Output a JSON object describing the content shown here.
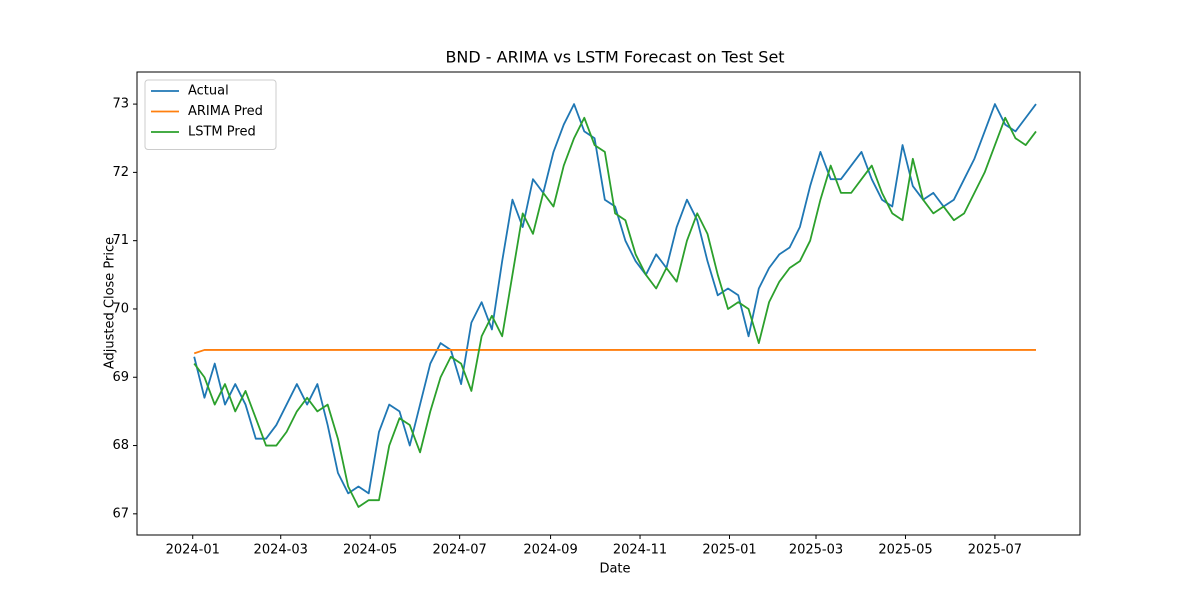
{
  "chart_data": {
    "type": "line",
    "title": "BND - ARIMA vs LSTM Forecast on Test Set",
    "xlabel": "Date",
    "ylabel": "Adjusted Close Price",
    "x": [
      "2024-01-02",
      "2024-01-09",
      "2024-01-16",
      "2024-01-23",
      "2024-01-30",
      "2024-02-06",
      "2024-02-13",
      "2024-02-20",
      "2024-02-27",
      "2024-03-05",
      "2024-03-12",
      "2024-03-19",
      "2024-03-26",
      "2024-04-02",
      "2024-04-09",
      "2024-04-16",
      "2024-04-23",
      "2024-04-30",
      "2024-05-07",
      "2024-05-14",
      "2024-05-21",
      "2024-05-28",
      "2024-06-04",
      "2024-06-11",
      "2024-06-18",
      "2024-06-25",
      "2024-07-02",
      "2024-07-09",
      "2024-07-16",
      "2024-07-23",
      "2024-07-30",
      "2024-08-06",
      "2024-08-13",
      "2024-08-20",
      "2024-08-27",
      "2024-09-03",
      "2024-09-10",
      "2024-09-17",
      "2024-09-24",
      "2024-10-01",
      "2024-10-08",
      "2024-10-15",
      "2024-10-22",
      "2024-10-29",
      "2024-11-05",
      "2024-11-12",
      "2024-11-19",
      "2024-11-26",
      "2024-12-03",
      "2024-12-10",
      "2024-12-17",
      "2024-12-24",
      "2024-12-31",
      "2025-01-07",
      "2025-01-14",
      "2025-01-21",
      "2025-01-28",
      "2025-02-04",
      "2025-02-11",
      "2025-02-18",
      "2025-02-25",
      "2025-03-04",
      "2025-03-11",
      "2025-03-18",
      "2025-03-25",
      "2025-04-01",
      "2025-04-08",
      "2025-04-15",
      "2025-04-22",
      "2025-04-29",
      "2025-05-06",
      "2025-05-13",
      "2025-05-20",
      "2025-05-27",
      "2025-06-03",
      "2025-06-10",
      "2025-06-17",
      "2025-06-24",
      "2025-07-01",
      "2025-07-08",
      "2025-07-15",
      "2025-07-22",
      "2025-07-29"
    ],
    "series": [
      {
        "name": "Actual",
        "color": "#1f77b4",
        "values": [
          69.3,
          68.7,
          69.2,
          68.6,
          68.9,
          68.6,
          68.1,
          68.1,
          68.3,
          68.6,
          68.9,
          68.6,
          68.9,
          68.3,
          67.6,
          67.3,
          67.4,
          67.3,
          68.2,
          68.6,
          68.5,
          68.0,
          68.6,
          69.2,
          69.5,
          69.4,
          68.9,
          69.8,
          70.1,
          69.7,
          70.7,
          71.6,
          71.2,
          71.9,
          71.7,
          72.3,
          72.7,
          73.0,
          72.6,
          72.5,
          71.6,
          71.5,
          71.0,
          70.7,
          70.5,
          70.8,
          70.6,
          71.2,
          71.6,
          71.3,
          70.7,
          70.2,
          70.3,
          70.2,
          69.6,
          70.3,
          70.6,
          70.8,
          70.9,
          71.2,
          71.8,
          72.3,
          71.9,
          71.9,
          72.1,
          72.3,
          71.9,
          71.6,
          71.5,
          72.4,
          71.8,
          71.6,
          71.7,
          71.5,
          71.6,
          71.9,
          72.2,
          72.6,
          73.0,
          72.7,
          72.6,
          72.8,
          73.0
        ]
      },
      {
        "name": "ARIMA Pred",
        "color": "#ff7f0e",
        "values": [
          69.35,
          69.4,
          69.4,
          69.4,
          69.4,
          69.4,
          69.4,
          69.4,
          69.4,
          69.4,
          69.4,
          69.4,
          69.4,
          69.4,
          69.4,
          69.4,
          69.4,
          69.4,
          69.4,
          69.4,
          69.4,
          69.4,
          69.4,
          69.4,
          69.4,
          69.4,
          69.4,
          69.4,
          69.4,
          69.4,
          69.4,
          69.4,
          69.4,
          69.4,
          69.4,
          69.4,
          69.4,
          69.4,
          69.4,
          69.4,
          69.4,
          69.4,
          69.4,
          69.4,
          69.4,
          69.4,
          69.4,
          69.4,
          69.4,
          69.4,
          69.4,
          69.4,
          69.4,
          69.4,
          69.4,
          69.4,
          69.4,
          69.4,
          69.4,
          69.4,
          69.4,
          69.4,
          69.4,
          69.4,
          69.4,
          69.4,
          69.4,
          69.4,
          69.4,
          69.4,
          69.4,
          69.4,
          69.4,
          69.4,
          69.4,
          69.4,
          69.4,
          69.4,
          69.4,
          69.4,
          69.4,
          69.4,
          69.4
        ]
      },
      {
        "name": "LSTM Pred",
        "color": "#2ca02c",
        "values": [
          69.2,
          69.0,
          68.6,
          68.9,
          68.5,
          68.8,
          68.4,
          68.0,
          68.0,
          68.2,
          68.5,
          68.7,
          68.5,
          68.6,
          68.1,
          67.4,
          67.1,
          67.2,
          67.2,
          68.0,
          68.4,
          68.3,
          67.9,
          68.5,
          69.0,
          69.3,
          69.2,
          68.8,
          69.6,
          69.9,
          69.6,
          70.5,
          71.4,
          71.1,
          71.7,
          71.5,
          72.1,
          72.5,
          72.8,
          72.4,
          72.3,
          71.4,
          71.3,
          70.8,
          70.5,
          70.3,
          70.6,
          70.4,
          71.0,
          71.4,
          71.1,
          70.5,
          70.0,
          70.1,
          70.0,
          69.5,
          70.1,
          70.4,
          70.6,
          70.7,
          71.0,
          71.6,
          72.1,
          71.7,
          71.7,
          71.9,
          72.1,
          71.7,
          71.4,
          71.3,
          72.2,
          71.6,
          71.4,
          71.5,
          71.3,
          71.4,
          71.7,
          72.0,
          72.4,
          72.8,
          72.5,
          72.4,
          72.6
        ]
      }
    ],
    "xlim": [
      "2023-11-24",
      "2025-08-28"
    ],
    "xticks": [
      "2024-01",
      "2024-03",
      "2024-05",
      "2024-07",
      "2024-09",
      "2024-11",
      "2025-01",
      "2025-03",
      "2025-05",
      "2025-07"
    ],
    "ylim": [
      66.69,
      73.47
    ],
    "yticks": [
      67,
      68,
      69,
      70,
      71,
      72,
      73
    ],
    "legend": "upper left",
    "grid": false
  }
}
